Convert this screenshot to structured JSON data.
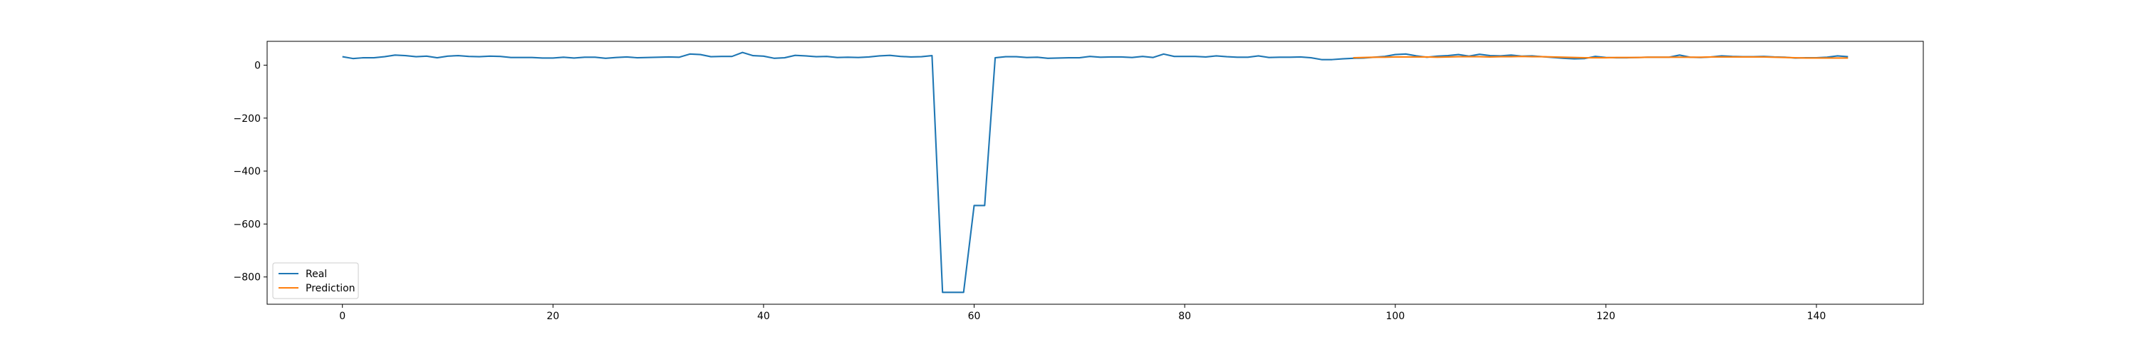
{
  "chart_data": {
    "type": "line",
    "series": [
      {
        "name": "Real",
        "color": "#1f77b4",
        "x": [
          0,
          1,
          2,
          3,
          4,
          5,
          6,
          7,
          8,
          9,
          10,
          11,
          12,
          13,
          14,
          15,
          16,
          17,
          18,
          19,
          20,
          21,
          22,
          23,
          24,
          25,
          26,
          27,
          28,
          29,
          30,
          31,
          32,
          33,
          34,
          35,
          36,
          37,
          38,
          39,
          40,
          41,
          42,
          43,
          44,
          45,
          46,
          47,
          48,
          49,
          50,
          51,
          52,
          53,
          54,
          55,
          56,
          57,
          58,
          59,
          60,
          61,
          62,
          63,
          64,
          65,
          66,
          67,
          68,
          69,
          70,
          71,
          72,
          73,
          74,
          75,
          76,
          77,
          78,
          79,
          80,
          81,
          82,
          83,
          84,
          85,
          86,
          87,
          88,
          89,
          90,
          91,
          92,
          93,
          94,
          95,
          96,
          97,
          98,
          99,
          100,
          101,
          102,
          103,
          104,
          105,
          106,
          107,
          108,
          109,
          110,
          111,
          112,
          113,
          114,
          115,
          116,
          117,
          118,
          119,
          120,
          121,
          122,
          123,
          124,
          125,
          126,
          127,
          128,
          129,
          130,
          131,
          132,
          133,
          134,
          135,
          136,
          137,
          138,
          139,
          140,
          141,
          142,
          143
        ],
        "values": [
          32,
          25,
          28,
          28,
          32,
          38,
          36,
          32,
          34,
          28,
          34,
          36,
          33,
          32,
          34,
          33,
          29,
          29,
          29,
          27,
          27,
          30,
          27,
          30,
          30,
          26,
          29,
          31,
          28,
          29,
          30,
          31,
          30,
          42,
          40,
          32,
          33,
          33,
          48,
          36,
          34,
          26,
          28,
          37,
          35,
          32,
          33,
          29,
          30,
          29,
          31,
          35,
          37,
          33,
          31,
          32,
          36,
          -858,
          -858,
          -858,
          -530,
          -530,
          28,
          32,
          32,
          29,
          30,
          26,
          27,
          28,
          28,
          33,
          30,
          31,
          31,
          29,
          33,
          29,
          42,
          33,
          33,
          33,
          31,
          35,
          32,
          30,
          30,
          35,
          29,
          30,
          30,
          31,
          28,
          21,
          21,
          24,
          26,
          27,
          30,
          33,
          40,
          42,
          35,
          30,
          34,
          36,
          40,
          34,
          41,
          36,
          35,
          38,
          34,
          35,
          32,
          29,
          26,
          24,
          25,
          33,
          29,
          28,
          28,
          29,
          30,
          30,
          30,
          38,
          30,
          29,
          31,
          35,
          33,
          32,
          32,
          33,
          31,
          30,
          27,
          28,
          28,
          30,
          35,
          32
        ]
      },
      {
        "name": "Prediction",
        "color": "#ff7f0e",
        "x": [
          96,
          97,
          98,
          99,
          100,
          101,
          102,
          103,
          104,
          105,
          106,
          107,
          108,
          109,
          110,
          111,
          112,
          113,
          114,
          115,
          116,
          117,
          118,
          119,
          120,
          121,
          122,
          123,
          124,
          125,
          126,
          127,
          128,
          129,
          130,
          131,
          132,
          133,
          134,
          135,
          136,
          137,
          138,
          139,
          140,
          141,
          142,
          143
        ],
        "values": [
          28,
          29,
          30,
          30,
          31,
          31,
          31,
          31,
          30,
          31,
          32,
          32,
          32,
          31,
          32,
          32,
          33,
          32,
          32,
          31,
          30,
          29,
          28,
          28,
          28,
          29,
          29,
          29,
          30,
          30,
          30,
          30,
          30,
          30,
          31,
          31,
          31,
          31,
          31,
          31,
          30,
          29,
          28,
          27,
          27,
          27,
          27,
          27
        ]
      }
    ],
    "xlim": [
      -7.15,
      150.15
    ],
    "xticks": [
      0,
      20,
      40,
      60,
      80,
      100,
      120,
      140
    ],
    "ylim": [
      -903,
      90
    ],
    "yticks": [
      {
        "value": -800,
        "label": "−800"
      },
      {
        "value": -600,
        "label": "−600"
      },
      {
        "value": -400,
        "label": "−400"
      },
      {
        "value": -200,
        "label": "−200"
      },
      0
    ],
    "legend": "lower left"
  }
}
